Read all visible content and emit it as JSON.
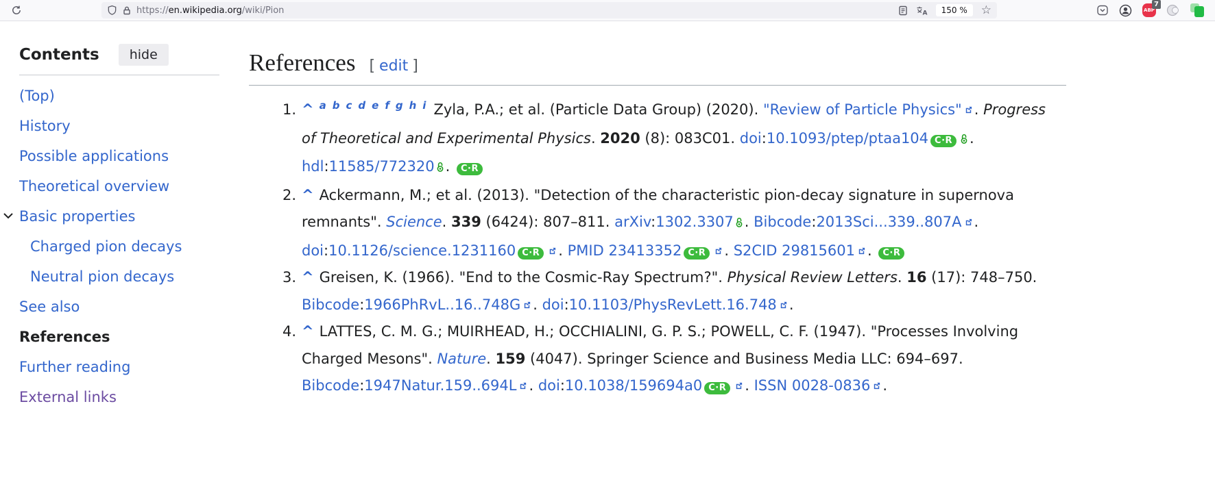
{
  "browser": {
    "url_prefix": "https://",
    "url_domain": "en.wikipedia.org",
    "url_path": "/wiki/Pion",
    "zoom_level": "150 %",
    "abp_label": "ABP",
    "abp_badge": "7"
  },
  "labels": {
    "cr_pill": "C·R",
    "caret": "^"
  },
  "sidebar": {
    "title": "Contents",
    "hide_label": "hide",
    "items": [
      {
        "label": "(Top)",
        "type": "link",
        "indent": 0
      },
      {
        "label": "History",
        "type": "link",
        "indent": 0
      },
      {
        "label": "Possible applications",
        "type": "link",
        "indent": 0
      },
      {
        "label": "Theoretical overview",
        "type": "link",
        "indent": 0
      },
      {
        "label": "Basic properties",
        "type": "link",
        "indent": 0,
        "expanded": true
      },
      {
        "label": "Charged pion decays",
        "type": "link",
        "indent": 1
      },
      {
        "label": "Neutral pion decays",
        "type": "link",
        "indent": 1
      },
      {
        "label": "See also",
        "type": "link",
        "indent": 0
      },
      {
        "label": "References",
        "type": "active",
        "indent": 0
      },
      {
        "label": "Further reading",
        "type": "link",
        "indent": 0
      },
      {
        "label": "External links",
        "type": "visited",
        "indent": 0
      }
    ]
  },
  "main": {
    "heading": "References",
    "edit_open": "[",
    "edit_label": "edit",
    "edit_close": "]",
    "references": [
      {
        "num": "1.",
        "segs": [
          {
            "k": "caret"
          },
          {
            "k": "sup",
            "letters": [
              "a",
              "b",
              "c",
              "d",
              "e",
              "f",
              "g",
              "h",
              "i"
            ]
          },
          {
            "k": "p",
            "t": "Zyla, P.A.; et al. (Particle Data Group) (2020). "
          },
          {
            "k": "l",
            "t": "\"Review of Particle Physics\""
          },
          {
            "k": "ext"
          },
          {
            "k": "p",
            "t": ". "
          },
          {
            "k": "i",
            "t": "Progress of Theoretical and Experimental Physics"
          },
          {
            "k": "p",
            "t": ". "
          },
          {
            "k": "b",
            "t": "2020"
          },
          {
            "k": "p",
            "t": " (8): 083C01. "
          },
          {
            "k": "l",
            "t": "doi"
          },
          {
            "k": "p",
            "t": ":"
          },
          {
            "k": "l",
            "t": "10.1093/ptep/ptaa104"
          },
          {
            "k": "cr"
          },
          {
            "k": "oa"
          },
          {
            "k": "p",
            "t": ". "
          },
          {
            "k": "l",
            "t": "hdl"
          },
          {
            "k": "p",
            "t": ":"
          },
          {
            "k": "l",
            "t": "11585/772320"
          },
          {
            "k": "oa"
          },
          {
            "k": "p",
            "t": ". "
          },
          {
            "k": "cr"
          }
        ]
      },
      {
        "num": "2.",
        "segs": [
          {
            "k": "caret"
          },
          {
            "k": "p",
            "t": "Ackermann, M.; et al. (2013). \"Detection of the characteristic pion-decay signature in supernova remnants\". "
          },
          {
            "k": "il",
            "t": "Science"
          },
          {
            "k": "p",
            "t": ". "
          },
          {
            "k": "b",
            "t": "339"
          },
          {
            "k": "p",
            "t": " (6424): 807–811. "
          },
          {
            "k": "l",
            "t": "arXiv"
          },
          {
            "k": "p",
            "t": ":"
          },
          {
            "k": "l",
            "t": "1302.3307"
          },
          {
            "k": "oa"
          },
          {
            "k": "p",
            "t": ". "
          },
          {
            "k": "l",
            "t": "Bibcode"
          },
          {
            "k": "p",
            "t": ":"
          },
          {
            "k": "l",
            "t": "2013Sci...339..807A"
          },
          {
            "k": "ext"
          },
          {
            "k": "p",
            "t": ". "
          },
          {
            "k": "l",
            "t": "doi"
          },
          {
            "k": "p",
            "t": ":"
          },
          {
            "k": "l",
            "t": "10.1126/science.1231160"
          },
          {
            "k": "cr"
          },
          {
            "k": "ext"
          },
          {
            "k": "p",
            "t": ". "
          },
          {
            "k": "l",
            "t": "PMID"
          },
          {
            "k": "p",
            "t": " "
          },
          {
            "k": "l",
            "t": "23413352"
          },
          {
            "k": "cr"
          },
          {
            "k": "ext"
          },
          {
            "k": "p",
            "t": ". "
          },
          {
            "k": "l",
            "t": "S2CID"
          },
          {
            "k": "p",
            "t": " "
          },
          {
            "k": "l",
            "t": "29815601"
          },
          {
            "k": "ext"
          },
          {
            "k": "p",
            "t": ". "
          },
          {
            "k": "cr"
          }
        ]
      },
      {
        "num": "3.",
        "segs": [
          {
            "k": "caret"
          },
          {
            "k": "p",
            "t": "Greisen, K. (1966). \"End to the Cosmic-Ray Spectrum?\". "
          },
          {
            "k": "i",
            "t": "Physical Review Letters"
          },
          {
            "k": "p",
            "t": ". "
          },
          {
            "k": "b",
            "t": "16"
          },
          {
            "k": "p",
            "t": " (17): 748–750. "
          },
          {
            "k": "l",
            "t": "Bibcode"
          },
          {
            "k": "p",
            "t": ":"
          },
          {
            "k": "l",
            "t": "1966PhRvL..16..748G"
          },
          {
            "k": "ext"
          },
          {
            "k": "p",
            "t": ". "
          },
          {
            "k": "l",
            "t": "doi"
          },
          {
            "k": "p",
            "t": ":"
          },
          {
            "k": "l",
            "t": "10.1103/PhysRevLett.16.748"
          },
          {
            "k": "ext"
          },
          {
            "k": "p",
            "t": "."
          }
        ]
      },
      {
        "num": "4.",
        "segs": [
          {
            "k": "caret"
          },
          {
            "k": "p",
            "t": "LATTES, C. M. G.; MUIRHEAD, H.; OCCHIALINI, G. P. S.; POWELL, C. F. (1947). \"Processes Involving Charged Mesons\". "
          },
          {
            "k": "il",
            "t": "Nature"
          },
          {
            "k": "p",
            "t": ". "
          },
          {
            "k": "b",
            "t": "159"
          },
          {
            "k": "p",
            "t": " (4047). Springer Science and Business Media LLC: 694–697. "
          },
          {
            "k": "l",
            "t": "Bibcode"
          },
          {
            "k": "p",
            "t": ":"
          },
          {
            "k": "l",
            "t": "1947Natur.159..694L"
          },
          {
            "k": "ext"
          },
          {
            "k": "p",
            "t": ". "
          },
          {
            "k": "l",
            "t": "doi"
          },
          {
            "k": "p",
            "t": ":"
          },
          {
            "k": "l",
            "t": "10.1038/159694a0"
          },
          {
            "k": "cr"
          },
          {
            "k": "ext"
          },
          {
            "k": "p",
            "t": ". "
          },
          {
            "k": "l",
            "t": "ISSN"
          },
          {
            "k": "p",
            "t": " "
          },
          {
            "k": "l",
            "t": "0028-0836"
          },
          {
            "k": "ext"
          },
          {
            "k": "p",
            "t": "."
          }
        ]
      }
    ]
  },
  "colors": {
    "link_blue": "#3366cc",
    "visited_purple": "#6b4ba1",
    "text": "#202122",
    "oa_green": "#1d9d1d",
    "cr_green": "#3dbb3d"
  }
}
